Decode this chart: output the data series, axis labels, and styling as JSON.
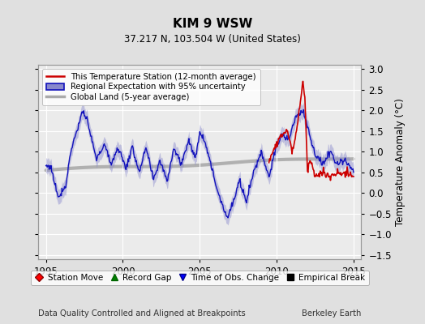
{
  "title": "KIM 9 WSW",
  "subtitle": "37.217 N, 103.504 W (United States)",
  "ylabel": "Temperature Anomaly (°C)",
  "footer_left": "Data Quality Controlled and Aligned at Breakpoints",
  "footer_right": "Berkeley Earth",
  "xlim": [
    1994.5,
    2015.5
  ],
  "ylim": [
    -1.6,
    3.1
  ],
  "yticks": [
    -1.5,
    -1.0,
    -0.5,
    0.0,
    0.5,
    1.0,
    1.5,
    2.0,
    2.5,
    3.0
  ],
  "xticks": [
    1995,
    2000,
    2005,
    2010,
    2015
  ],
  "bg_color": "#e0e0e0",
  "plot_bg_color": "#ebebeb",
  "red_line_color": "#cc0000",
  "blue_line_color": "#1111bb",
  "blue_fill_color": "#8888cc",
  "gray_line_color": "#aaaaaa",
  "obs_marker_color": "#3333cc"
}
